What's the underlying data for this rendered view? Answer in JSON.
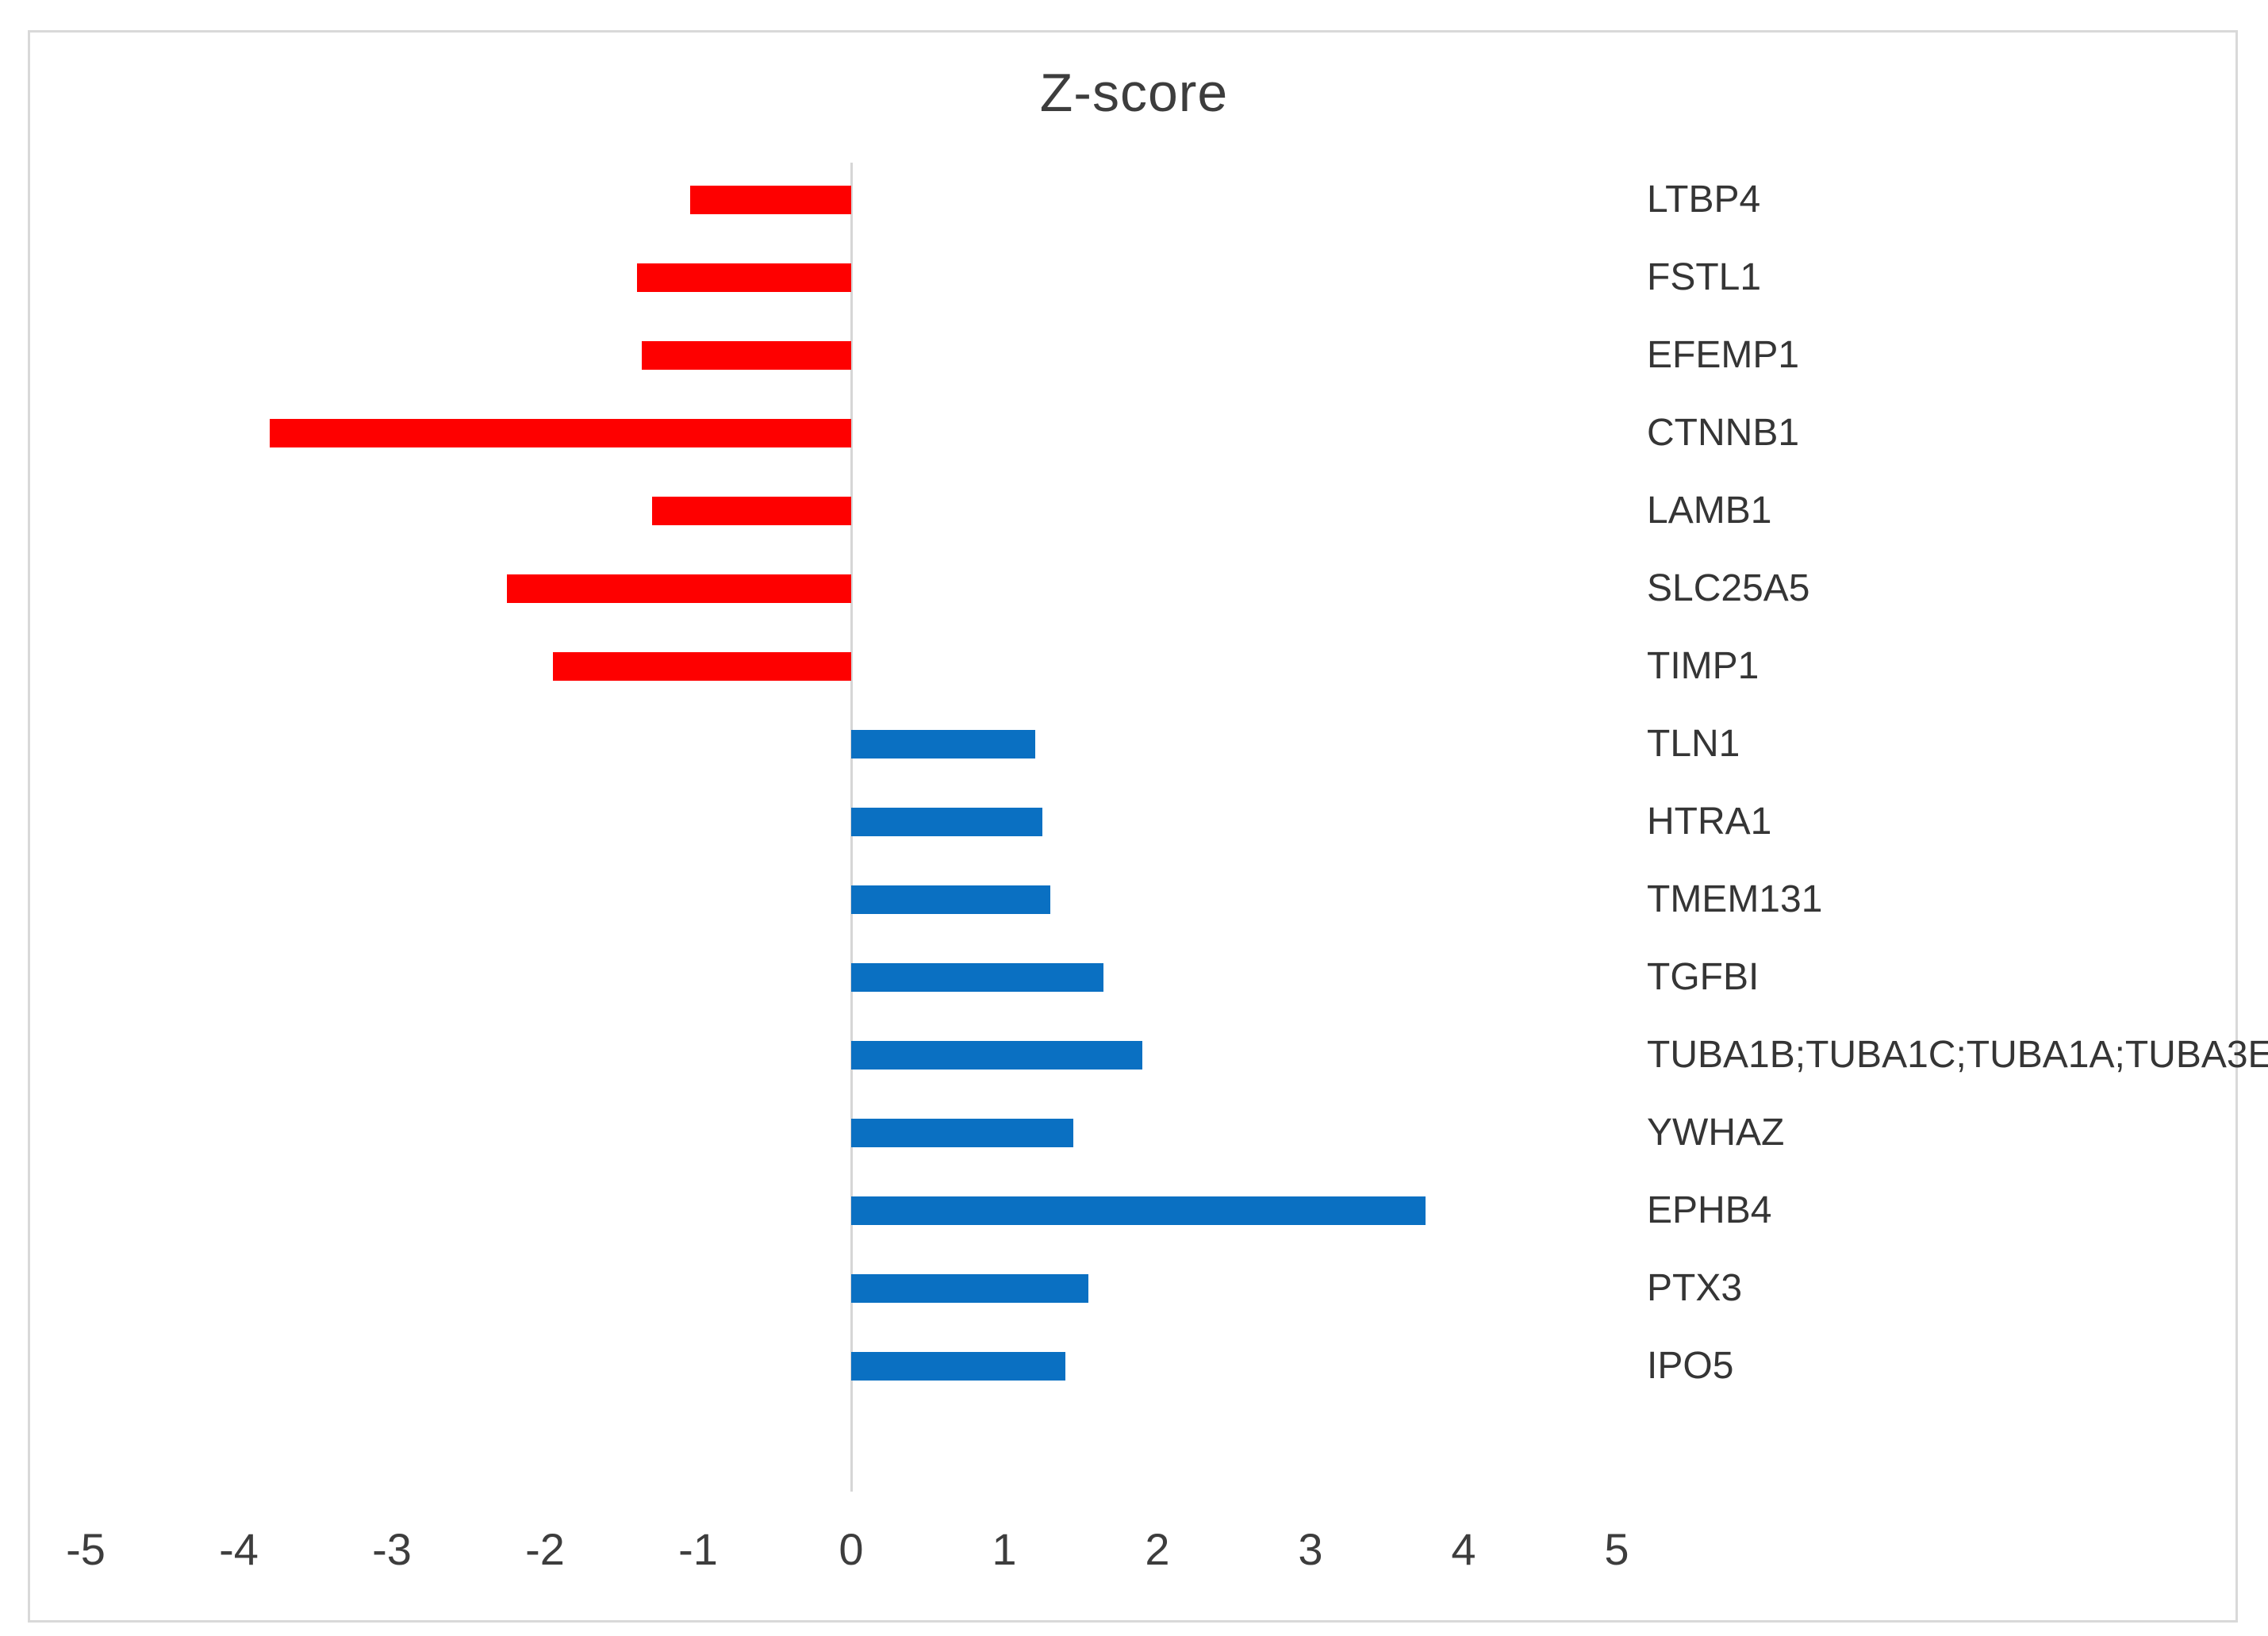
{
  "title": "Z-score",
  "colors": {
    "negative_bar": "#fe0000",
    "positive_bar": "#0a70c2",
    "axis_line": "#d6d6d6",
    "chart_border": "#d9d9d9",
    "text": "#3d3d3d"
  },
  "chart_data": {
    "type": "bar",
    "orientation": "horizontal",
    "title": "Z-score",
    "xlabel": "",
    "ylabel": "",
    "xlim": [
      -5,
      5
    ],
    "x_ticks": [
      -5,
      -4,
      -3,
      -2,
      -1,
      0,
      1,
      2,
      3,
      4,
      5
    ],
    "grid": false,
    "legend": false,
    "color_rule": "negative values red, positive values blue",
    "categories": [
      "LTBP4",
      "FSTL1",
      "EFEMP1",
      "CTNNB1",
      "LAMB1",
      "SLC25A5",
      "TIMP1",
      "TLN1",
      "HTRA1",
      "TMEM131",
      "TGFBI",
      "TUBA1B;TUBA1C;TUBA1A;TUBA3E",
      "YWHAZ",
      "EPHB4",
      "PTX3",
      "IPO5"
    ],
    "values": [
      -1.05,
      -1.4,
      -1.37,
      -3.8,
      -1.3,
      -2.25,
      -1.95,
      1.2,
      1.25,
      1.3,
      1.65,
      1.9,
      1.45,
      3.75,
      1.55,
      1.4
    ]
  }
}
